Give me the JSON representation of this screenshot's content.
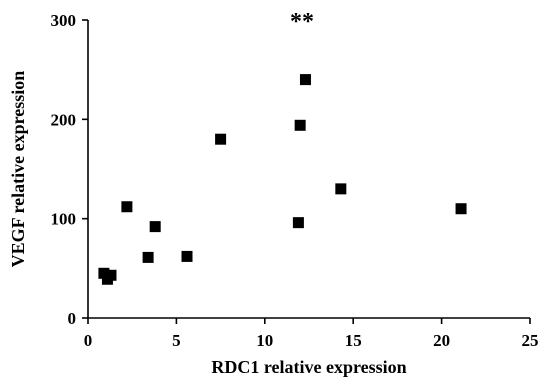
{
  "chart_data": {
    "type": "scatter",
    "title": "",
    "xlabel": "RDC1 relative expression",
    "ylabel": "VEGF relative expression",
    "xlim": [
      0,
      25
    ],
    "ylim": [
      0,
      300
    ],
    "x_ticks": [
      0,
      5,
      10,
      15,
      20,
      25
    ],
    "y_ticks": [
      0,
      100,
      200,
      300
    ],
    "x_tick_labels": [
      "0",
      "5",
      "10",
      "15",
      "20",
      "25"
    ],
    "y_tick_labels": [
      "0",
      "100",
      "200",
      "300"
    ],
    "annotation": "**",
    "marker": "square",
    "marker_color": "#000000",
    "grid": false,
    "points": [
      {
        "x": 0.9,
        "y": 45
      },
      {
        "x": 1.3,
        "y": 43
      },
      {
        "x": 1.1,
        "y": 39
      },
      {
        "x": 2.2,
        "y": 112
      },
      {
        "x": 3.4,
        "y": 61
      },
      {
        "x": 3.8,
        "y": 92
      },
      {
        "x": 5.6,
        "y": 62
      },
      {
        "x": 7.5,
        "y": 180
      },
      {
        "x": 11.9,
        "y": 96
      },
      {
        "x": 12.0,
        "y": 194
      },
      {
        "x": 12.3,
        "y": 240
      },
      {
        "x": 14.3,
        "y": 130
      },
      {
        "x": 21.1,
        "y": 110
      }
    ]
  }
}
